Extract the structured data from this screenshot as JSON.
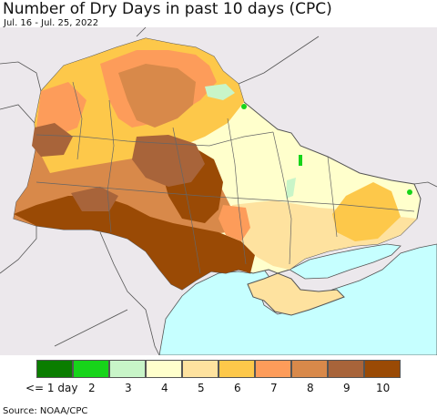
{
  "title": "Number of Dry Days in past 10 days (CPC)",
  "subtitle": "Jul. 16 - Jul. 25, 2022",
  "legend": {
    "items": [
      {
        "label": "<= 1 day",
        "color": "#0a7d00"
      },
      {
        "label": "2",
        "color": "#17d41a"
      },
      {
        "label": "3",
        "color": "#c8f5c8"
      },
      {
        "label": "4",
        "color": "#ffffcc"
      },
      {
        "label": "5",
        "color": "#fee29f"
      },
      {
        "label": "6",
        "color": "#fdc84a"
      },
      {
        "label": "7",
        "color": "#fd9c5a"
      },
      {
        "label": "8",
        "color": "#d8894a"
      },
      {
        "label": "9",
        "color": "#a8643a"
      },
      {
        "label": "10",
        "color": "#9a4a05"
      }
    ]
  },
  "source": "Source: NOAA/CPC",
  "map_colors": {
    "background": "#ece8ec",
    "sea": "#c6ffff",
    "border": "#555555"
  }
}
